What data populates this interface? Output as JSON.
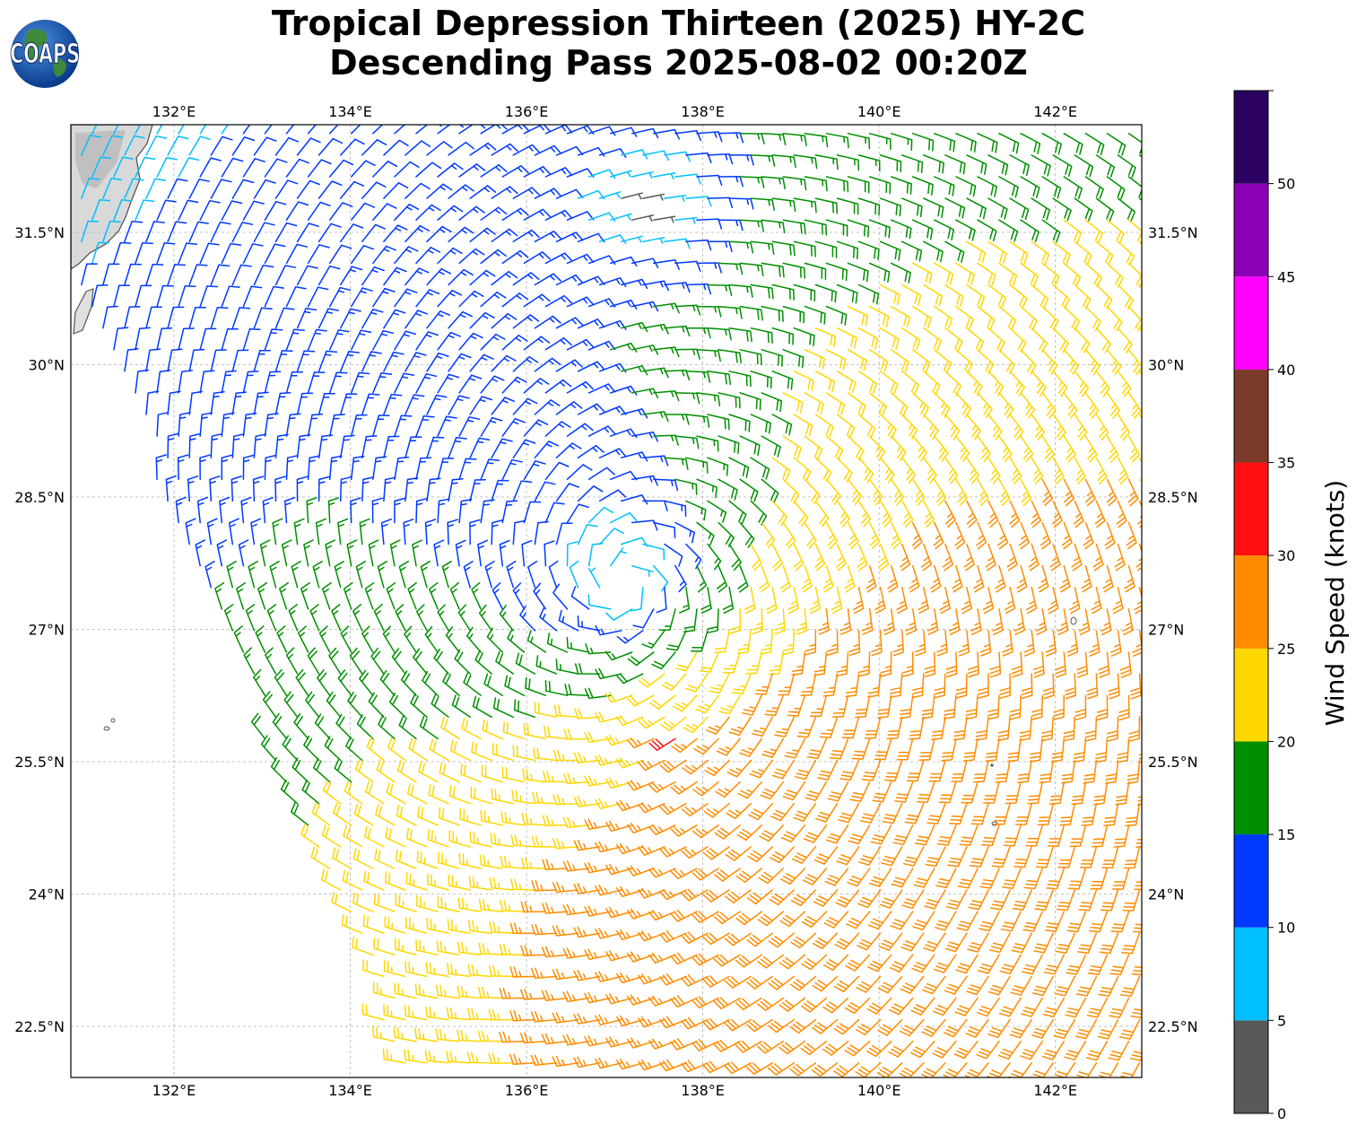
{
  "title": {
    "line1": "Tropical Depression Thirteen (2025) HY-2C",
    "line2": "Descending Pass 2025-08-02 00:20Z"
  },
  "logo": {
    "text": "COAPS",
    "icon": "earth-globe-logo"
  },
  "map": {
    "lon_range": [
      130.83,
      142.98
    ],
    "lat_range": [
      21.92,
      32.72
    ],
    "lon_ticks": [
      "132°E",
      "134°E",
      "136°E",
      "138°E",
      "140°E",
      "142°E"
    ],
    "lon_tick_values": [
      132,
      134,
      136,
      138,
      140,
      142
    ],
    "lat_ticks": [
      "22.5°N",
      "24°N",
      "25.5°N",
      "27°N",
      "28.5°N",
      "30°N",
      "31.5°N"
    ],
    "lat_tick_values": [
      22.5,
      24,
      25.5,
      27,
      28.5,
      30,
      31.5
    ],
    "gridlines": true,
    "storm_center": {
      "lon": 137.1,
      "lat": 27.55
    },
    "wind_field": "cyclonic counter-clockwise wind barbs; weakest near center, 20-30 kt southeast quadrant, 30-35 kt band near 137.7E 25.7N"
  },
  "colorbar": {
    "label": "Wind Speed (knots)",
    "tick_labels": [
      "0",
      "5",
      "10",
      "15",
      "20",
      "25",
      "30",
      "35",
      "40",
      "45",
      "50"
    ],
    "bins": [
      {
        "min": 0,
        "max": 5,
        "color": "#585858"
      },
      {
        "min": 5,
        "max": 10,
        "color": "#00bfff"
      },
      {
        "min": 10,
        "max": 15,
        "color": "#0038ff"
      },
      {
        "min": 15,
        "max": 20,
        "color": "#008f00"
      },
      {
        "min": 20,
        "max": 25,
        "color": "#ffd700"
      },
      {
        "min": 25,
        "max": 30,
        "color": "#ff8c00"
      },
      {
        "min": 30,
        "max": 35,
        "color": "#ff0f0f"
      },
      {
        "min": 35,
        "max": 40,
        "color": "#7b3a2a"
      },
      {
        "min": 40,
        "max": 45,
        "color": "#ff00ff"
      },
      {
        "min": 45,
        "max": 50,
        "color": "#8b00b5"
      },
      {
        "min": 50,
        "max": 55,
        "color": "#2a0060"
      }
    ]
  }
}
